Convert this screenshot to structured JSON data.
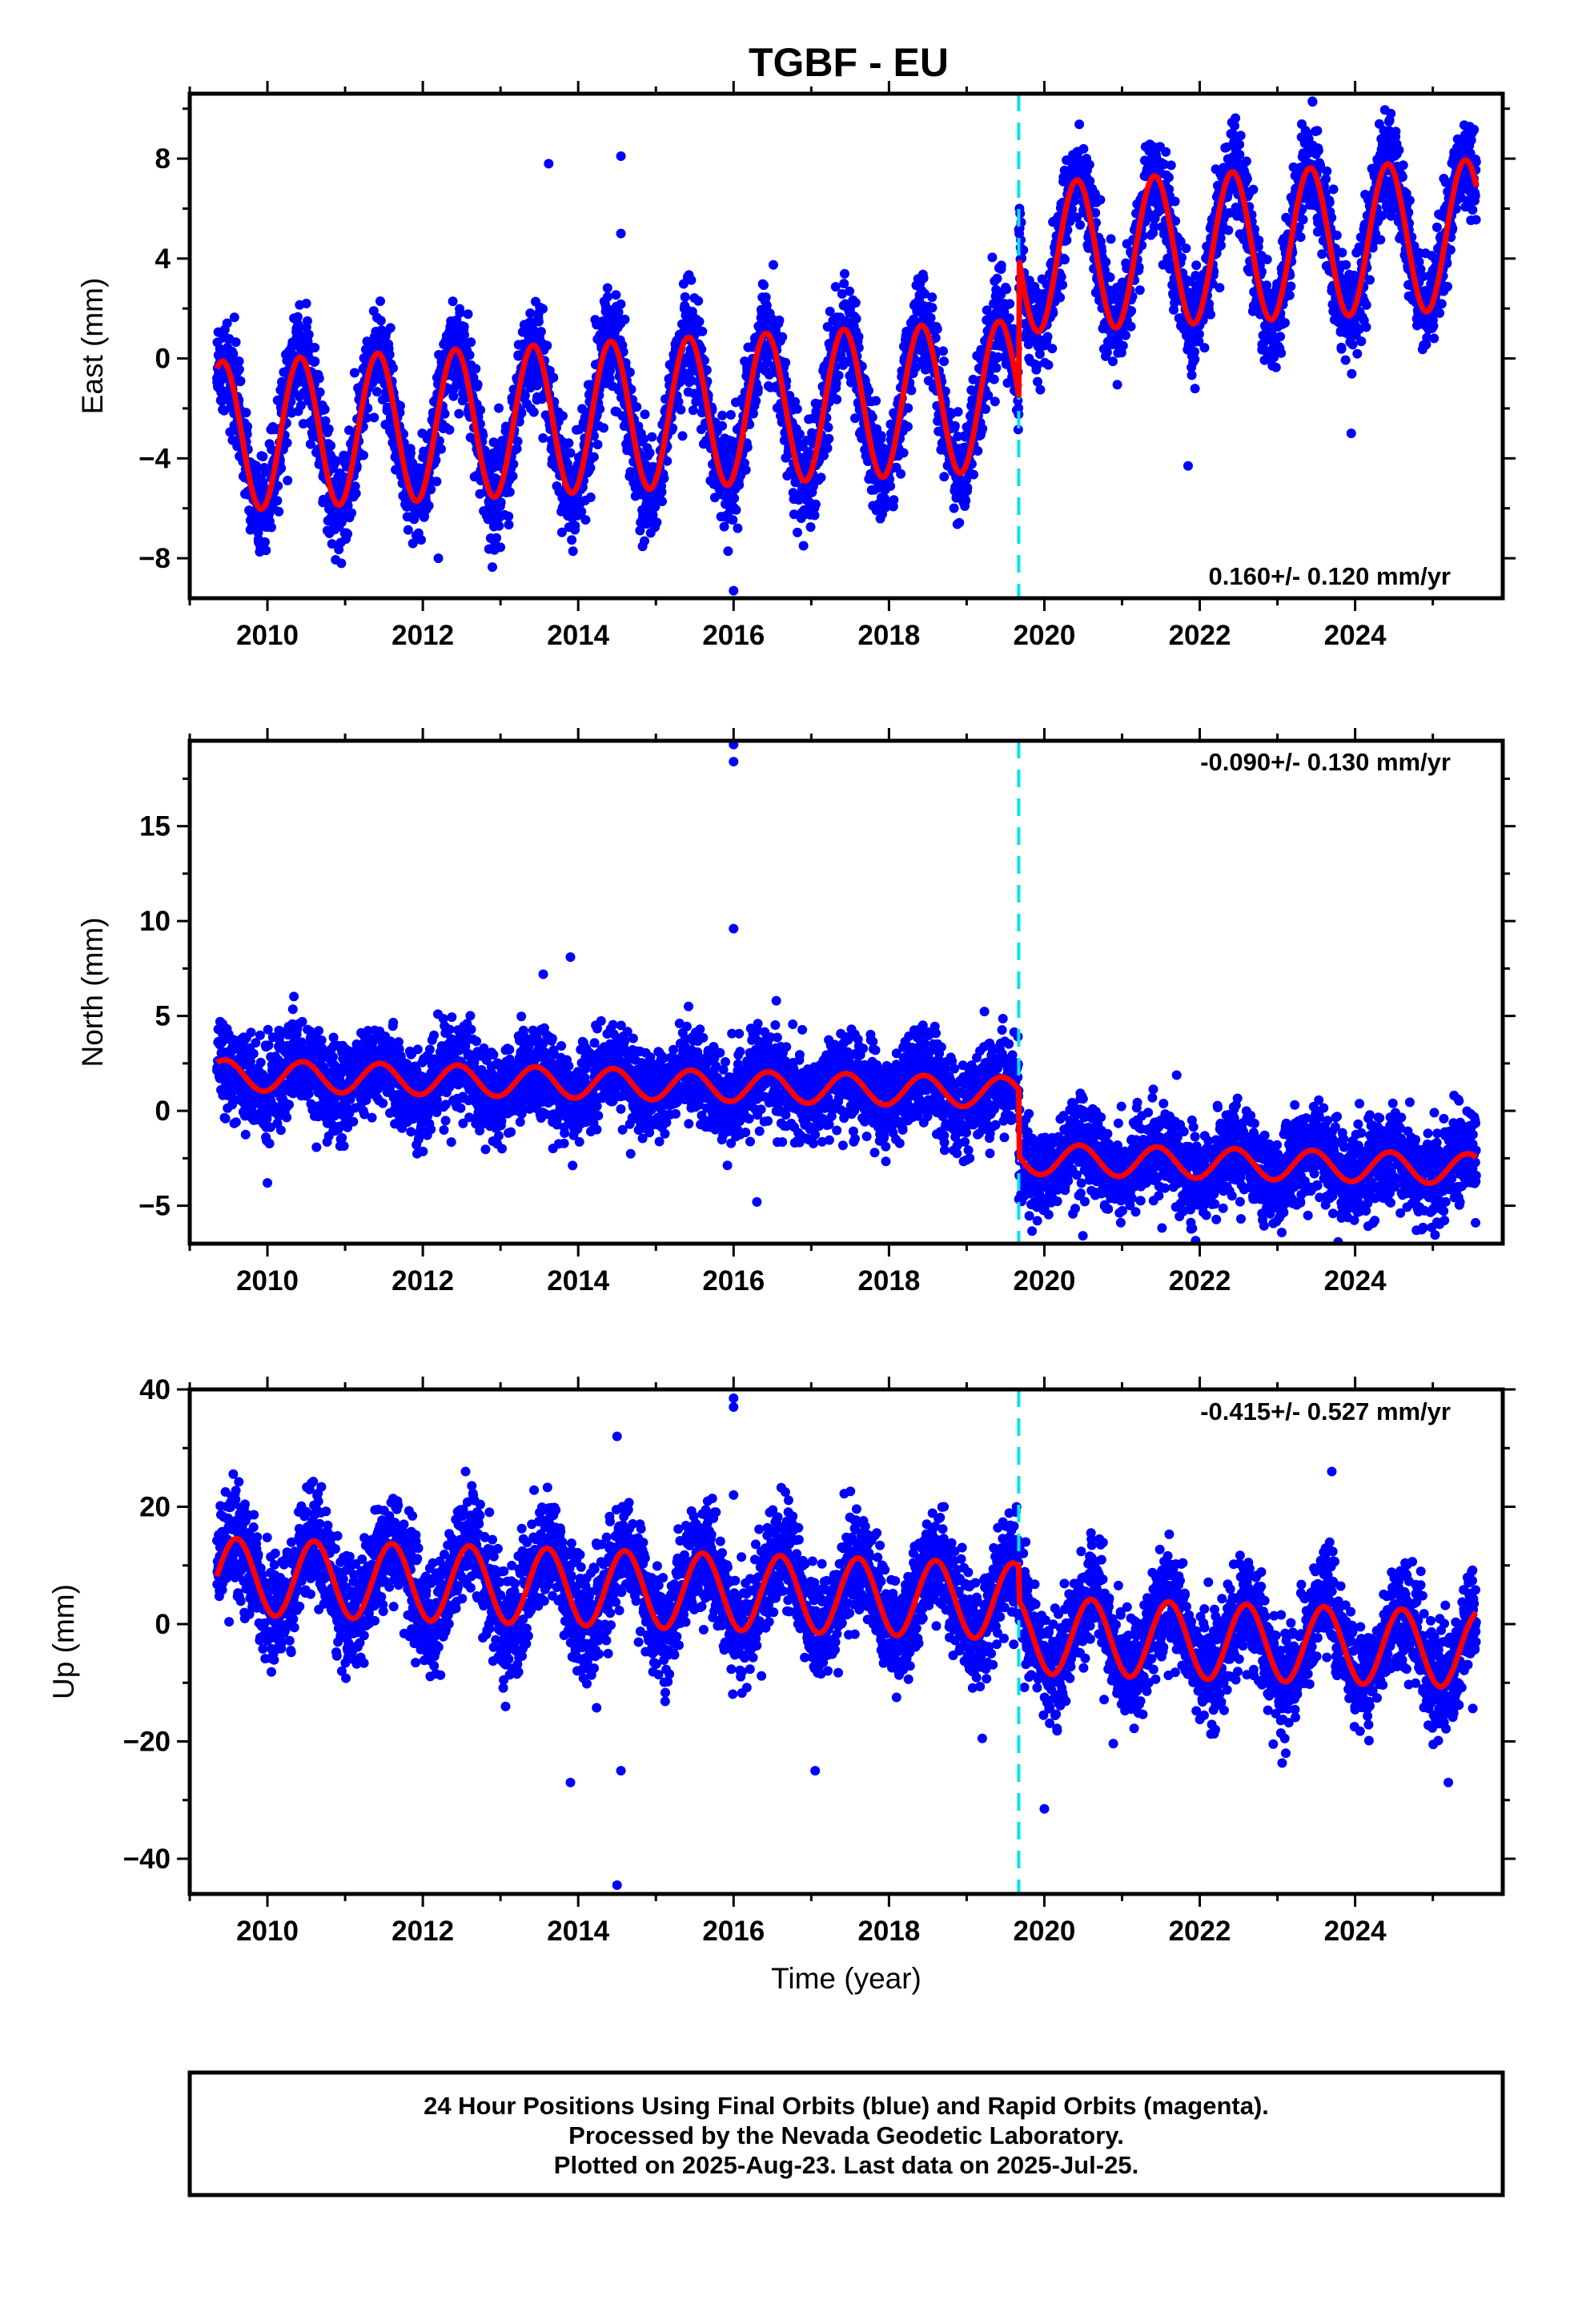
{
  "figure": {
    "title": "TGBF - EU",
    "xlabel": "Time (year)",
    "footer_lines": [
      "24 Hour Positions Using Final Orbits (blue) and Rapid Orbits (magenta).",
      "Processed by the Nevada Geodetic Laboratory.",
      "Plotted on 2025-Aug-23. Last data on 2025-Jul-25."
    ]
  },
  "colors": {
    "points": "#0000ff",
    "fit_line": "#ff0000",
    "equipment_change": "#00e5e5",
    "frame": "#000000"
  },
  "chart_data": [
    {
      "type": "scatter",
      "component": "east",
      "ylabel": "East (mm)",
      "xlim": [
        2009.0,
        2025.9
      ],
      "ylim": [
        -9.6,
        10.6
      ],
      "yticks": [
        -8,
        -4,
        0,
        4,
        8
      ],
      "xticks": [
        2010,
        2012,
        2014,
        2016,
        2018,
        2020,
        2022,
        2024
      ],
      "trend_text": "0.160+/- 0.120 mm/yr",
      "trend_position": "bottom-right",
      "equipment_change_epoch": 2019.67,
      "data_span": [
        2009.35,
        2025.56
      ],
      "model": {
        "segments": [
          {
            "t0": 2009.35,
            "t1": 2019.67,
            "offset": -1.9,
            "rate": 0.16,
            "annual_amp": 3.0,
            "peak_phase": 0.42
          },
          {
            "t0": 2019.67,
            "t1": 2025.56,
            "offset": 3.6,
            "rate": 0.16,
            "annual_amp": 3.0,
            "peak_phase": 0.42
          }
        ]
      },
      "scatter_sigma": 1.0,
      "outliers": [
        [
          2013.62,
          7.8
        ],
        [
          2014.55,
          8.1
        ],
        [
          2014.55,
          5.0
        ],
        [
          2016.0,
          -9.3
        ],
        [
          2021.85,
          -4.3
        ],
        [
          2023.45,
          10.3
        ],
        [
          2023.95,
          -3.0
        ],
        [
          2012.2,
          -8.0
        ],
        [
          2016.9,
          -7.5
        ]
      ]
    },
    {
      "type": "scatter",
      "component": "north",
      "ylabel": "North (mm)",
      "xlim": [
        2009.0,
        2025.9
      ],
      "ylim": [
        -7.0,
        19.5
      ],
      "yticks": [
        -5,
        0,
        5,
        10,
        15
      ],
      "xticks": [
        2010,
        2012,
        2014,
        2016,
        2018,
        2020,
        2022,
        2024
      ],
      "trend_text": "-0.090+/- 0.130 mm/yr",
      "trend_position": "top-right",
      "equipment_change_epoch": 2019.67,
      "data_span": [
        2009.35,
        2025.56
      ],
      "model": {
        "segments": [
          {
            "t0": 2009.35,
            "t1": 2019.67,
            "offset": 1.2,
            "rate": -0.09,
            "annual_amp": 0.8,
            "peak_phase": 0.45
          },
          {
            "t0": 2019.67,
            "t1": 2025.56,
            "offset": -2.3,
            "rate": -0.09,
            "annual_amp": 0.8,
            "peak_phase": 0.45
          }
        ]
      },
      "scatter_sigma": 1.2,
      "outliers": [
        [
          2016.0,
          19.3
        ],
        [
          2016.0,
          18.4
        ],
        [
          2016.0,
          9.6
        ],
        [
          2013.55,
          7.2
        ],
        [
          2013.9,
          8.1
        ],
        [
          2016.55,
          5.8
        ],
        [
          2016.3,
          -4.8
        ],
        [
          2010.0,
          -3.8
        ],
        [
          2025.55,
          -5.9
        ]
      ]
    },
    {
      "type": "scatter",
      "component": "up",
      "ylabel": "Up (mm)",
      "xlim": [
        2009.0,
        2025.9
      ],
      "ylim": [
        -46,
        40
      ],
      "yticks": [
        -40,
        -20,
        0,
        20,
        40
      ],
      "xticks": [
        2010,
        2012,
        2014,
        2016,
        2018,
        2020,
        2022,
        2024
      ],
      "trend_text": "-0.415+/- 0.527 mm/yr",
      "trend_position": "top-right",
      "equipment_change_epoch": 2019.67,
      "data_span": [
        2009.35,
        2025.56
      ],
      "model": {
        "segments": [
          {
            "t0": 2009.35,
            "t1": 2019.67,
            "offset": 5.0,
            "rate": -0.415,
            "annual_amp": 6.5,
            "peak_phase": 0.6
          },
          {
            "t0": 2019.67,
            "t1": 2025.56,
            "offset": -0.8,
            "rate": -0.415,
            "annual_amp": 6.5,
            "peak_phase": 0.6
          }
        ]
      },
      "scatter_sigma": 4.5,
      "outliers": [
        [
          2016.0,
          38.5
        ],
        [
          2016.0,
          37.0
        ],
        [
          2016.0,
          22.0
        ],
        [
          2014.5,
          32.0
        ],
        [
          2014.5,
          -44.5
        ],
        [
          2012.55,
          26.0
        ],
        [
          2023.7,
          26.0
        ],
        [
          2013.9,
          -27.0
        ],
        [
          2020.0,
          -31.5
        ],
        [
          2025.2,
          -27.0
        ],
        [
          2017.05,
          -25.0
        ],
        [
          2014.55,
          -25.0
        ]
      ]
    }
  ]
}
